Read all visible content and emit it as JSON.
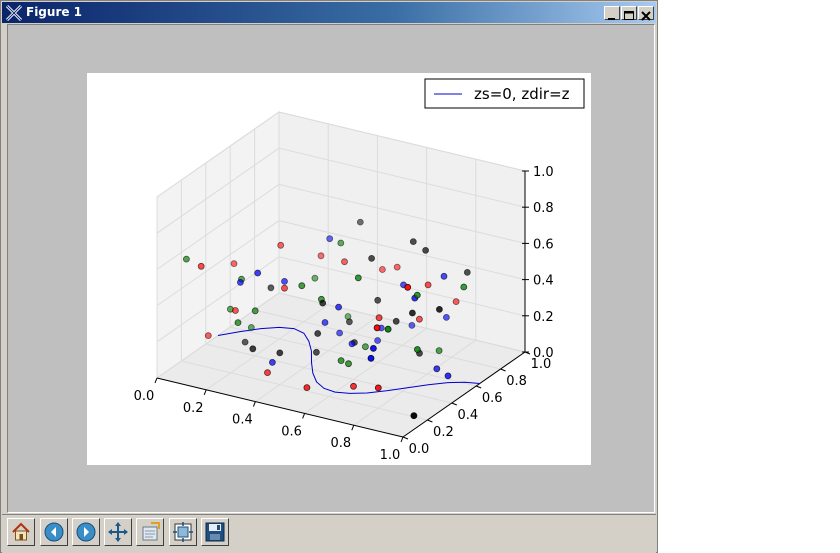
{
  "window": {
    "title": "Figure 1"
  },
  "toolbar": {
    "buttons": [
      {
        "name": "home-button",
        "icon": "home-icon"
      },
      {
        "name": "back-button",
        "icon": "back-arrow-icon"
      },
      {
        "name": "forward-button",
        "icon": "forward-arrow-icon"
      },
      {
        "name": "pan-button",
        "icon": "move-icon"
      },
      {
        "name": "zoom-button",
        "icon": "zoom-rect-icon"
      },
      {
        "name": "subplots-button",
        "icon": "subplots-icon"
      },
      {
        "name": "save-button",
        "icon": "save-icon"
      }
    ]
  },
  "colors": {
    "line": "#0000cc",
    "series_r": "#ff0000",
    "series_g": "#008000",
    "series_b": "#0000ff",
    "series_k": "#000000"
  },
  "chart_data": {
    "type": "scatter",
    "projection": "3d",
    "legend": {
      "label": "zs=0, zdir=z",
      "location": "upper-right"
    },
    "xlim": [
      0,
      1
    ],
    "ylim": [
      0,
      1
    ],
    "zlim": [
      0,
      1
    ],
    "x_ticks": [
      "0.0",
      "0.2",
      "0.4",
      "0.6",
      "0.8",
      "1.0"
    ],
    "y_ticks": [
      "0.0",
      "0.2",
      "0.4",
      "0.6",
      "0.8",
      "1.0"
    ],
    "z_ticks": [
      "0.0",
      "0.2",
      "0.4",
      "0.6",
      "0.8",
      "1.0"
    ],
    "grid": true,
    "line": {
      "label": "zs=0, zdir=z",
      "z": 0,
      "x": [
        0.0,
        0.05,
        0.1,
        0.15,
        0.2,
        0.25,
        0.3,
        0.35,
        0.4,
        0.45,
        0.5,
        0.55,
        0.6,
        0.65,
        0.7,
        0.75,
        0.8,
        0.85,
        0.9,
        0.95,
        1.0
      ],
      "y": [
        0.5,
        0.58,
        0.65,
        0.7,
        0.72,
        0.7,
        0.64,
        0.56,
        0.46,
        0.37,
        0.3,
        0.26,
        0.25,
        0.27,
        0.31,
        0.37,
        0.44,
        0.51,
        0.57,
        0.61,
        0.63
      ]
    },
    "series": [
      {
        "color": "r",
        "x": [
          0.12,
          0.52,
          0.23,
          0.73,
          0.28,
          0.63,
          0.05,
          0.63,
          0.31,
          0.73,
          0.18,
          0.47,
          0.83,
          0.93,
          0.4,
          0.68,
          0.09,
          0.88,
          0.35,
          0.55
        ],
        "y": [
          0.12,
          0.92,
          0.55,
          0.98,
          0.78,
          0.55,
          0.32,
          0.34,
          0.42,
          0.75,
          0.28,
          0.9,
          0.14,
          0.18,
          0.73,
          0.78,
          0.45,
          0.03,
          0.2,
          0.12
        ],
        "z": [
          0.6,
          0.35,
          0.55,
          0.2,
          0.4,
          0.28,
          0.1,
          0.0,
          0.4,
          0.4,
          0.3,
          0.33,
          0.15,
          0.72,
          0.43,
          0.18,
          0.45,
          0.55,
          0.05,
          0.07
        ]
      },
      {
        "color": "g",
        "x": [
          0.06,
          0.35,
          0.88,
          0.75,
          0.41,
          0.28,
          0.18,
          0.47,
          0.82,
          0.56,
          0.86,
          0.16,
          0.24,
          0.91,
          0.28,
          0.12,
          0.58,
          0.63,
          0.43,
          0.51
        ],
        "y": [
          0.12,
          0.86,
          0.12,
          0.8,
          0.68,
          0.24,
          0.33,
          0.4,
          0.48,
          0.38,
          0.4,
          0.45,
          0.18,
          0.68,
          0.73,
          0.36,
          0.4,
          0.38,
          0.32,
          0.68
        ],
        "z": [
          0.62,
          0.05,
          0.5,
          0.02,
          0.56,
          0.35,
          0.45,
          0.4,
          0.5,
          0.1,
          0.25,
          0.12,
          0.3,
          0.48,
          0.3,
          0.25,
          0.08,
          0.58,
          0.5,
          0.02
        ]
      },
      {
        "color": "b",
        "x": [
          0.84,
          0.52,
          0.81,
          0.32,
          0.86,
          0.42,
          0.64,
          0.36,
          0.78,
          0.54,
          0.35,
          0.23,
          0.54,
          0.44,
          0.32,
          0.83,
          0.91,
          0.52,
          0.59,
          0.73
        ],
        "y": [
          0.08,
          0.76,
          0.48,
          0.18,
          0.02,
          0.65,
          0.73,
          0.22,
          0.78,
          0.4,
          0.71,
          0.22,
          0.75,
          0.49,
          0.4,
          0.62,
          0.55,
          0.55,
          0.9,
          0.9
        ],
        "z": [
          0.4,
          0.02,
          0.48,
          0.6,
          0.38,
          0.08,
          0.38,
          0.1,
          0.45,
          0.38,
          0.55,
          0.5,
          0.1,
          0.22,
          0.45,
          0.03,
          0.05,
          0.1,
          0.06,
          0.15
        ]
      },
      {
        "color": "k",
        "x": [
          0.71,
          0.98,
          0.37,
          0.44,
          0.49,
          0.55,
          0.81,
          0.57,
          0.32,
          0.65,
          0.22,
          0.49,
          0.82,
          0.45,
          0.91,
          0.73,
          0.67,
          0.41,
          0.15,
          0.38
        ],
        "y": [
          0.72,
          0.13,
          0.92,
          0.69,
          0.37,
          0.7,
          0.91,
          0.61,
          0.14,
          0.65,
          0.49,
          0.63,
          0.44,
          0.41,
          0.48,
          0.73,
          0.75,
          0.48,
          0.42,
          0.24
        ],
        "z": [
          0.03,
          0.05,
          0.55,
          0.13,
          0.4,
          0.28,
          0.42,
          0.56,
          0.2,
          0.22,
          0.34,
          0.06,
          0.42,
          0.2,
          0.45,
          0.6,
          0.62,
          0.05,
          0.05,
          0.15
        ]
      }
    ]
  }
}
